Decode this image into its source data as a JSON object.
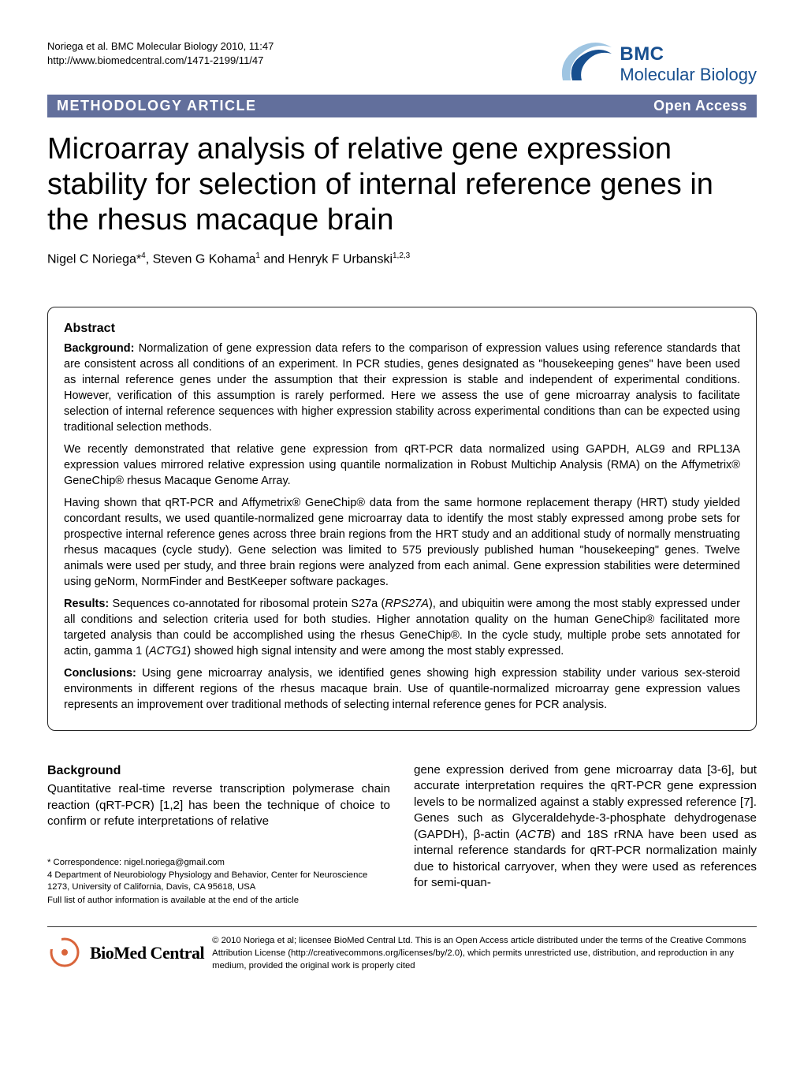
{
  "citation": {
    "line1": "Noriega et al. BMC Molecular Biology 2010, 11:47",
    "line2": "http://www.biomedcentral.com/1471-2199/11/47"
  },
  "logo": {
    "bmc": "BMC",
    "sub": "Molecular Biology",
    "swoosh_outer": "#9fc5e2",
    "swoosh_inner": "#174f8f",
    "text_color": "#174f8f"
  },
  "band": {
    "left": "METHODOLOGY ARTICLE",
    "right": "Open Access",
    "bg": "#626f9c",
    "fg": "#ffffff"
  },
  "title": "Microarray analysis of relative gene expression stability for selection of internal reference genes in the rhesus macaque brain",
  "authors_html": "Nigel C Noriega*<sup>4</sup>, Steven G Kohama<sup>1</sup> and Henryk F Urbanski<sup>1,2,3</sup>",
  "abstract": {
    "heading": "Abstract",
    "paragraphs": [
      "<strong>Background:</strong> Normalization of gene expression data refers to the comparison of expression values using reference standards that are consistent across all conditions of an experiment. In PCR studies, genes designated as \"housekeeping genes\" have been used as internal reference genes under the assumption that their expression is stable and independent of experimental conditions. However, verification of this assumption is rarely performed. Here we assess the use of gene microarray analysis to facilitate selection of internal reference sequences with higher expression stability across experimental conditions than can be expected using traditional selection methods.",
      "We recently demonstrated that relative gene expression from qRT-PCR data normalized using GAPDH, ALG9 and RPL13A expression values mirrored relative expression using quantile normalization in Robust Multichip Analysis (RMA) on the Affymetrix® GeneChip® rhesus Macaque Genome Array.",
      "Having shown that qRT-PCR and Affymetrix® GeneChip® data from the same hormone replacement therapy (HRT) study yielded concordant results, we used quantile-normalized gene microarray data to identify the most stably expressed among probe sets for prospective internal reference genes across three brain regions from the HRT study and an additional study of normally menstruating rhesus macaques (cycle study). Gene selection was limited to 575 previously published human \"housekeeping\" genes. Twelve animals were used per study, and three brain regions were analyzed from each animal. Gene expression stabilities were determined using geNorm, NormFinder and BestKeeper software packages.",
      "<strong>Results:</strong> Sequences co-annotated for ribosomal protein S27a (<em>RPS27A</em>), and ubiquitin were among the most stably expressed under all conditions and selection criteria used for both studies. Higher annotation quality on the human GeneChip® facilitated more targeted analysis than could be accomplished using the rhesus GeneChip®. In the cycle study, multiple probe sets annotated for actin, gamma 1 (<em>ACTG1</em>) showed high signal intensity and were among the most stably expressed.",
      "<strong>Conclusions:</strong> Using gene microarray analysis, we identified genes showing high expression stability under various sex-steroid environments in different regions of the rhesus macaque brain. Use of quantile-normalized microarray gene expression values represents an improvement over traditional methods of selecting internal reference genes for PCR analysis."
    ]
  },
  "background": {
    "heading": "Background",
    "col1": "Quantitative real-time reverse transcription polymerase chain reaction (qRT-PCR) [1,2] has been the technique of choice to confirm or refute interpretations of relative",
    "col2": "gene expression derived from gene microarray data [3-6], but accurate interpretation requires the qRT-PCR gene expression levels to be normalized against a stably expressed reference [7]. Genes such as Glyceraldehyde-3-phosphate dehydrogenase (GAPDH), β-actin (<em>ACTB</em>) and 18S rRNA have been used as internal reference standards for qRT-PCR normalization mainly due to historical carryover, when they were used as references for semi-quan-"
  },
  "footnotes": {
    "correspondence": "* Correspondence: nigel.noriega@gmail.com",
    "affiliation": "4 Department of Neurobiology Physiology and Behavior, Center for Neuroscience 1273, University of California, Davis, CA 95618, USA",
    "full_list": "Full list of author information is available at the end of the article"
  },
  "license": {
    "biomed": "BioMed Central",
    "text": "© 2010 Noriega et al; licensee BioMed Central Ltd. This is an Open Access article distributed under the terms of the Creative Commons Attribution License (http://creativecommons.org/licenses/by/2.0), which permits unrestricted use, distribution, and reproduction in any medium, provided the original work is properly cited",
    "ring_color": "#d9643a"
  }
}
